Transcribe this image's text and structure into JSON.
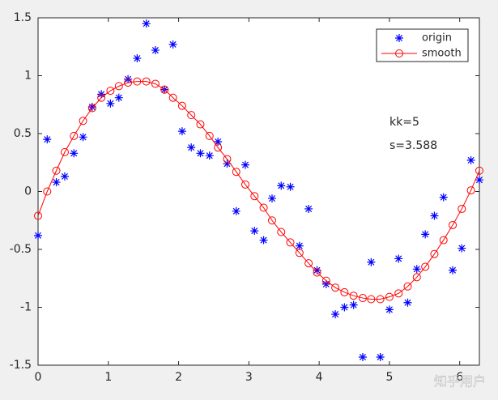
{
  "chart_data": {
    "type": "line",
    "x": [
      0,
      0.13,
      0.26,
      0.38,
      0.51,
      0.64,
      0.77,
      0.9,
      1.03,
      1.15,
      1.28,
      1.41,
      1.54,
      1.67,
      1.8,
      1.92,
      2.05,
      2.18,
      2.31,
      2.44,
      2.56,
      2.69,
      2.82,
      2.95,
      3.08,
      3.21,
      3.33,
      3.46,
      3.59,
      3.72,
      3.85,
      3.97,
      4.1,
      4.23,
      4.36,
      4.49,
      4.62,
      4.74,
      4.87,
      5.0,
      5.13,
      5.26,
      5.39,
      5.51,
      5.64,
      5.77,
      5.9,
      6.03,
      6.16,
      6.28
    ],
    "series": [
      {
        "name": "origin",
        "color": "#0000ff",
        "marker": "asterisk",
        "line": false,
        "values": [
          -0.38,
          0.45,
          0.08,
          0.13,
          0.33,
          0.47,
          0.73,
          0.84,
          0.76,
          0.81,
          0.97,
          1.15,
          1.45,
          1.22,
          0.88,
          1.27,
          0.52,
          0.38,
          0.33,
          0.31,
          0.43,
          0.24,
          -0.17,
          0.23,
          -0.34,
          -0.42,
          -0.06,
          0.05,
          0.04,
          -0.47,
          -0.15,
          -0.68,
          -0.8,
          -1.06,
          -1.0,
          -0.98,
          -1.43,
          -0.61,
          -1.43,
          -1.02,
          -0.58,
          -0.96,
          -0.67,
          -0.37,
          -0.21,
          -0.05,
          -0.68,
          -0.49,
          0.27,
          0.1
        ]
      },
      {
        "name": "smooth",
        "color": "#ff0000",
        "marker": "circle",
        "line": true,
        "values": [
          -0.21,
          0.0,
          0.18,
          0.34,
          0.48,
          0.61,
          0.72,
          0.81,
          0.87,
          0.91,
          0.94,
          0.95,
          0.95,
          0.93,
          0.88,
          0.81,
          0.74,
          0.66,
          0.58,
          0.48,
          0.38,
          0.28,
          0.17,
          0.06,
          -0.04,
          -0.14,
          -0.25,
          -0.35,
          -0.44,
          -0.53,
          -0.62,
          -0.7,
          -0.77,
          -0.83,
          -0.87,
          -0.9,
          -0.92,
          -0.93,
          -0.93,
          -0.91,
          -0.88,
          -0.82,
          -0.74,
          -0.65,
          -0.54,
          -0.42,
          -0.29,
          -0.15,
          0.01,
          0.18
        ]
      }
    ],
    "xlim": [
      0,
      6.28
    ],
    "ylim": [
      -1.5,
      1.5
    ],
    "xticks": [
      0,
      1,
      2,
      3,
      4,
      5,
      6
    ],
    "yticks": [
      -1.5,
      -1,
      -0.5,
      0,
      0.5,
      1,
      1.5
    ],
    "legend": "northeast",
    "annotations": [
      "kk=5",
      "s=3.588"
    ],
    "watermark": "知乎用户"
  }
}
